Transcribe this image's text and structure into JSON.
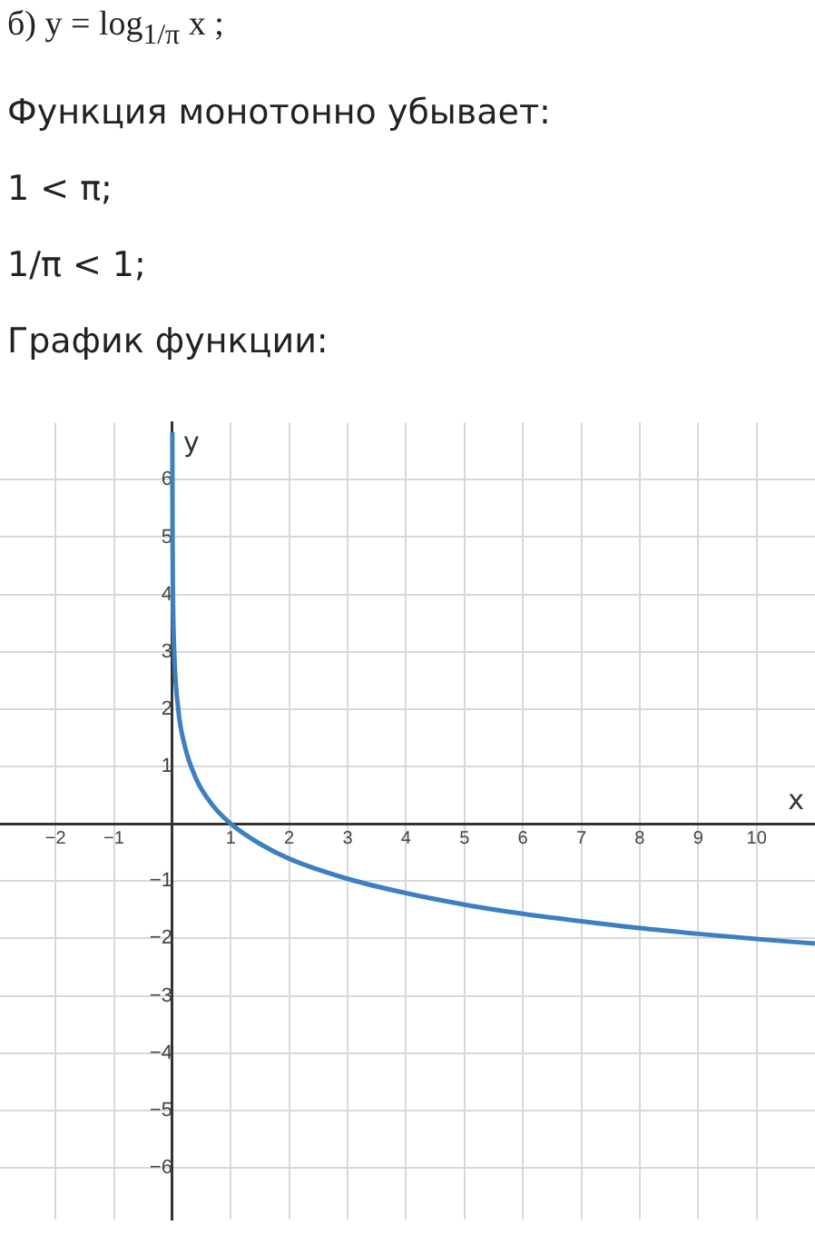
{
  "chart_data": {
    "type": "line",
    "title": "б) y = log$_{1/π}$ x ;",
    "annotations": [
      "Функция монотонно убывает:",
      "1 < π;",
      "1/π < 1;",
      "График функции:"
    ],
    "xlabel": "x",
    "ylabel": "y",
    "x": [
      0.0004,
      0.001,
      0.003,
      0.01,
      0.03,
      0.1,
      0.2,
      0.4,
      0.7,
      1,
      1.5,
      2,
      3,
      4,
      5,
      6,
      7,
      8,
      9,
      10,
      11
    ],
    "series": [
      {
        "color": "#3d7fc1",
        "values": [
          6.83,
          6.03,
          5.07,
          4.02,
          3.06,
          2.01,
          1.41,
          0.8,
          0.31,
          0,
          -0.35,
          -0.61,
          -0.96,
          -1.21,
          -1.41,
          -1.57,
          -1.7,
          -1.82,
          -1.92,
          -2.01,
          -2.09
        ]
      }
    ],
    "xlim": [
      -2.95,
      11
    ],
    "ylim": [
      -6.9,
      7
    ],
    "xticks": [
      -2,
      -1,
      {
        "value": 0,
        "label": null
      },
      1,
      2,
      3,
      4,
      5,
      6,
      7,
      8,
      9,
      10
    ],
    "yticks": [
      -6,
      -5,
      -4,
      -3,
      -2,
      -1,
      {
        "value": 0,
        "label": null
      },
      1,
      2,
      3,
      4,
      5,
      6
    ],
    "grid": true,
    "legend": false,
    "marker": "none",
    "line_style": "solid"
  }
}
